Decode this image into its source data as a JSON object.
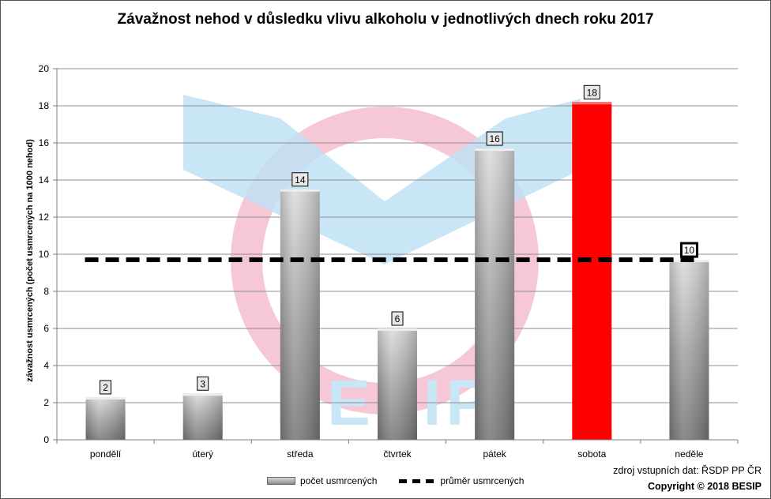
{
  "chart_data": {
    "type": "bar",
    "title": "Závažnost nehod v důsledku vlivu alkoholu v jednotlivých dnech roku 2017",
    "ylabel": "závažnost usmrcených  (počet usmrcených  na 1000 nehod)",
    "xlabel": "",
    "categories": [
      "pondělí",
      "úterý",
      "středa",
      "čtvrtek",
      "pátek",
      "sobota",
      "neděle"
    ],
    "series": [
      {
        "name": "počet usmrcených",
        "type": "bar",
        "values": [
          2.3,
          2.5,
          13.5,
          6.0,
          15.7,
          18.2,
          9.7
        ],
        "labels": [
          "2",
          "3",
          "14",
          "6",
          "16",
          "18",
          "10"
        ]
      },
      {
        "name": "průměr usmrcených",
        "type": "line",
        "style": "dashed",
        "values": [
          9.7,
          9.7,
          9.7,
          9.7,
          9.7,
          9.7,
          9.7
        ]
      }
    ],
    "ylim": [
      0,
      20
    ],
    "yticks": [
      "0",
      "2",
      "4",
      "6",
      "8",
      "10",
      "12",
      "14",
      "16",
      "18",
      "20"
    ],
    "grid": true,
    "legend": "bottom-center",
    "highlight_category": "sobota",
    "colors": {
      "bar": "#a6a6a6",
      "highlight": "#ff0000",
      "average": "#000000",
      "watermark_circle": "#f6c8d6",
      "watermark_v": "#bfe2f5"
    }
  },
  "watermark": {
    "text": "BESIP"
  },
  "footer": {
    "source": "zdroj vstupních dat: ŘSDP PP ČR",
    "copyright": "Copyright © 2018 BESIP"
  }
}
